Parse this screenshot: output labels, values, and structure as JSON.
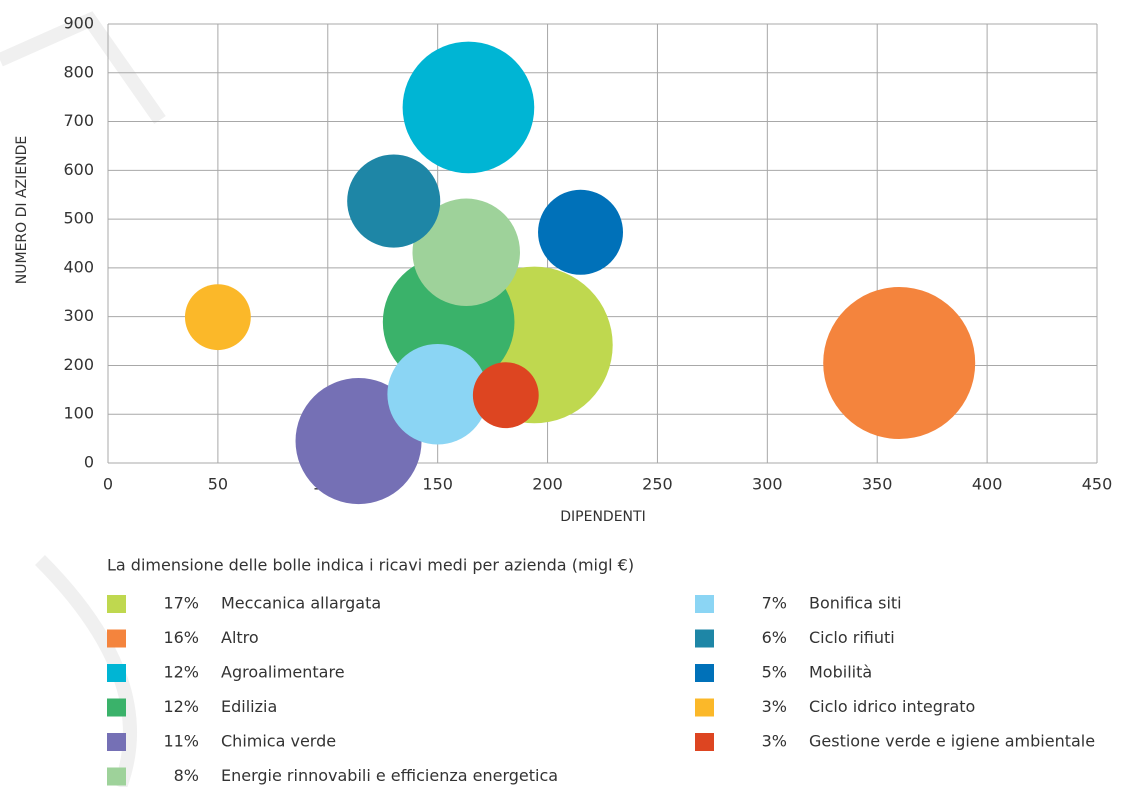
{
  "chart_data": {
    "type": "bubble",
    "xlabel": "DIPENDENTI",
    "ylabel": "NUMERO DI AZIENDE",
    "note": "La dimensione delle bolle indica i ricavi medi per azienda (migl €)",
    "xlim": [
      0,
      450
    ],
    "xticks": [
      0,
      50,
      100,
      150,
      200,
      250,
      300,
      350,
      400,
      450
    ],
    "ylim": [
      0,
      900
    ],
    "yticks": [
      0,
      100,
      200,
      300,
      400,
      500,
      600,
      700,
      800,
      900
    ],
    "grid": true,
    "series": [
      {
        "name": "Meccanica allargata",
        "color": "#bfd84f",
        "x": 194,
        "y": 242,
        "size": 17,
        "size_label": "17%"
      },
      {
        "name": "Altro",
        "color": "#f4843d",
        "x": 360,
        "y": 205,
        "size": 16,
        "size_label": "16%"
      },
      {
        "name": "Agroalimentare",
        "color": "#00b5d4",
        "x": 164,
        "y": 729,
        "size": 12,
        "size_label": "12%"
      },
      {
        "name": "Edilizia",
        "color": "#3ab26a",
        "x": 155,
        "y": 289,
        "size": 12,
        "size_label": "12%"
      },
      {
        "name": "Chimica verde",
        "color": "#7570b5",
        "x": 114,
        "y": 45,
        "size": 11,
        "size_label": "11%"
      },
      {
        "name": "Energie rinnovabili e efficienza energetica",
        "color": "#9ed29a",
        "x": 163,
        "y": 432,
        "size": 8,
        "size_label": "8%"
      },
      {
        "name": "Bonifica siti",
        "color": "#8bd5f4",
        "x": 150,
        "y": 141,
        "size": 7,
        "size_label": "7%"
      },
      {
        "name": "Ciclo rifiuti",
        "color": "#1e86a6",
        "x": 130,
        "y": 537,
        "size": 6,
        "size_label": "6%"
      },
      {
        "name": "Mobilità",
        "color": "#0071b9",
        "x": 215,
        "y": 473,
        "size": 5,
        "size_label": "5%"
      },
      {
        "name": "Ciclo idrico integrato",
        "color": "#fbb829",
        "x": 50,
        "y": 299,
        "size": 3,
        "size_label": "3%"
      },
      {
        "name": "Gestione verde e igiene ambientale",
        "color": "#dd4521",
        "x": 181,
        "y": 139,
        "size": 3,
        "size_label": "3%"
      }
    ]
  }
}
